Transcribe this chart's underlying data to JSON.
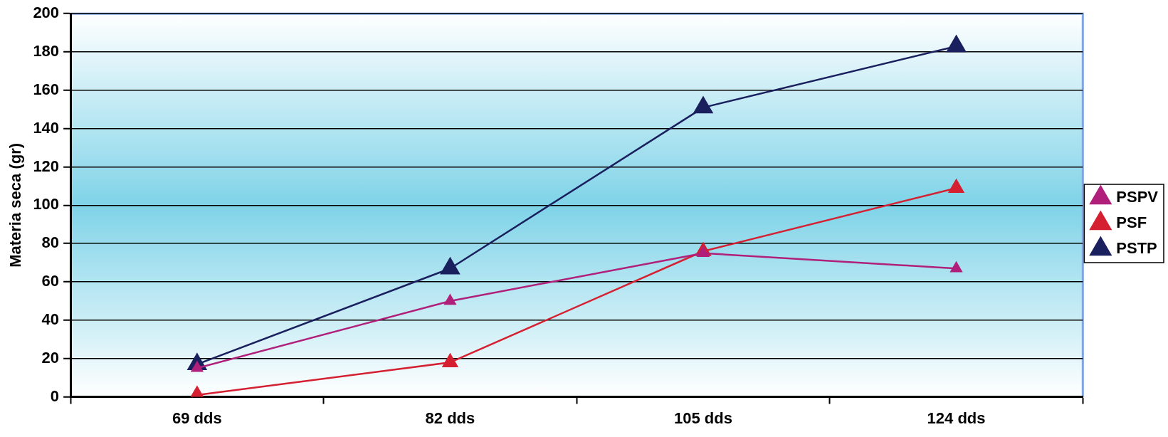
{
  "chart_data": {
    "type": "line",
    "ylabel": "Materia seca (gr)",
    "categories": [
      "69 dds",
      "82 dds",
      "105 dds",
      "124 dds"
    ],
    "series": [
      {
        "name": "PSPV",
        "color": "#b0207a",
        "values": [
          15,
          50,
          75,
          67
        ]
      },
      {
        "name": "PSF",
        "color": "#d42030",
        "values": [
          1,
          18,
          76,
          109
        ]
      },
      {
        "name": "PSTP",
        "color": "#1a1f5e",
        "values": [
          17,
          67,
          151,
          183
        ]
      }
    ],
    "ylim": [
      0,
      200
    ],
    "yticks": [
      0,
      20,
      40,
      60,
      80,
      100,
      120,
      140,
      160,
      180,
      200
    ],
    "grid": "y",
    "legend": "right",
    "marker": "triangle"
  }
}
